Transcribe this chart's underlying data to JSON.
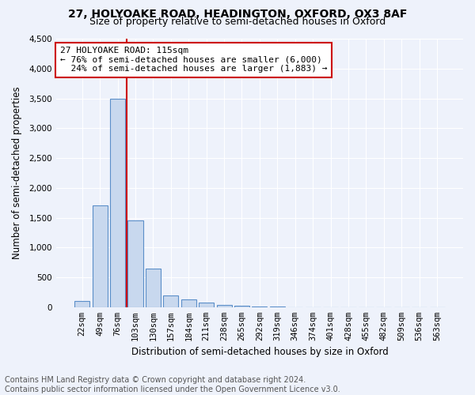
{
  "title_line1": "27, HOLYOAKE ROAD, HEADINGTON, OXFORD, OX3 8AF",
  "title_line2": "Size of property relative to semi-detached houses in Oxford",
  "xlabel": "Distribution of semi-detached houses by size in Oxford",
  "ylabel": "Number of semi-detached properties",
  "footnote": "Contains HM Land Registry data © Crown copyright and database right 2024.\nContains public sector information licensed under the Open Government Licence v3.0.",
  "bar_labels": [
    "22sqm",
    "49sqm",
    "76sqm",
    "103sqm",
    "130sqm",
    "157sqm",
    "184sqm",
    "211sqm",
    "238sqm",
    "265sqm",
    "292sqm",
    "319sqm",
    "346sqm",
    "374sqm",
    "401sqm",
    "428sqm",
    "455sqm",
    "482sqm",
    "509sqm",
    "536sqm",
    "563sqm"
  ],
  "bar_values": [
    100,
    1700,
    3500,
    1450,
    650,
    200,
    130,
    75,
    40,
    20,
    10,
    5,
    3,
    0,
    0,
    0,
    0,
    0,
    0,
    0,
    0
  ],
  "bar_color": "#c8d8ee",
  "bar_edge_color": "#5b8fc9",
  "vline_x_index": 2.5,
  "vline_color": "#cc0000",
  "annotation_text": "27 HOLYOAKE ROAD: 115sqm\n← 76% of semi-detached houses are smaller (6,000)\n  24% of semi-detached houses are larger (1,883) →",
  "annotation_box_color": "#ffffff",
  "annotation_box_edge_color": "#cc0000",
  "ylim": [
    0,
    4500
  ],
  "yticks": [
    0,
    500,
    1000,
    1500,
    2000,
    2500,
    3000,
    3500,
    4000,
    4500
  ],
  "background_color": "#eef2fb",
  "grid_color": "#ffffff",
  "title_fontsize": 10,
  "subtitle_fontsize": 9,
  "axis_label_fontsize": 8.5,
  "tick_fontsize": 7.5,
  "annotation_fontsize": 8,
  "footnote_fontsize": 7
}
